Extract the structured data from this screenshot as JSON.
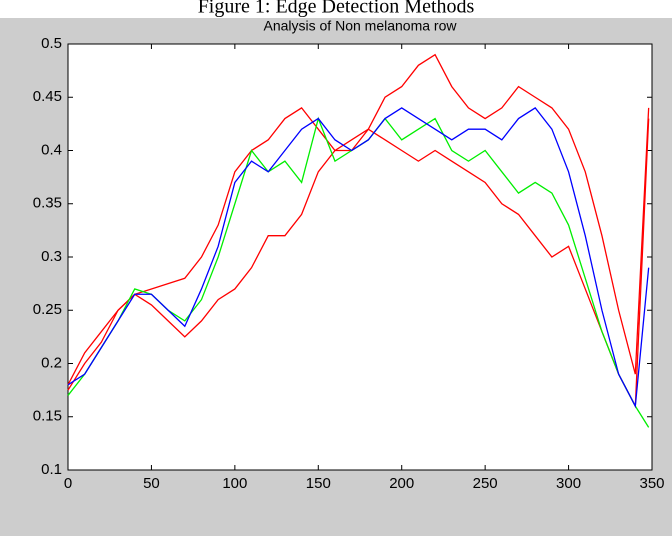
{
  "chart_data": {
    "type": "line",
    "caption": "Figure 1: Edge Detection Methods",
    "title": "Analysis of Non melanoma row",
    "x": [
      0,
      10,
      20,
      30,
      40,
      50,
      60,
      70,
      80,
      90,
      100,
      110,
      120,
      130,
      140,
      150,
      160,
      170,
      180,
      190,
      200,
      210,
      220,
      230,
      240,
      250,
      260,
      270,
      280,
      290,
      300,
      310,
      320,
      330,
      340,
      348
    ],
    "series": [
      {
        "color": "#ff0000",
        "values": [
          0.18,
          0.21,
          0.23,
          0.25,
          0.265,
          0.27,
          0.275,
          0.28,
          0.3,
          0.33,
          0.38,
          0.4,
          0.41,
          0.43,
          0.44,
          0.42,
          0.4,
          0.41,
          0.42,
          0.45,
          0.46,
          0.48,
          0.49,
          0.46,
          0.44,
          0.43,
          0.44,
          0.46,
          0.45,
          0.44,
          0.42,
          0.38,
          0.32,
          0.25,
          0.19,
          0.44
        ]
      },
      {
        "color": "#ff0000",
        "values": [
          0.175,
          0.2,
          0.22,
          0.25,
          0.265,
          0.255,
          0.24,
          0.225,
          0.24,
          0.26,
          0.27,
          0.29,
          0.32,
          0.32,
          0.34,
          0.38,
          0.4,
          0.4,
          0.42,
          0.41,
          0.4,
          0.39,
          0.4,
          0.39,
          0.38,
          0.37,
          0.35,
          0.34,
          0.32,
          0.3,
          0.31,
          0.27,
          0.23,
          0.19,
          0.16,
          0.43
        ]
      },
      {
        "color": "#00ee00",
        "values": [
          0.17,
          0.19,
          0.215,
          0.24,
          0.27,
          0.265,
          0.25,
          0.24,
          0.26,
          0.3,
          0.35,
          0.4,
          0.38,
          0.39,
          0.37,
          0.43,
          0.39,
          0.4,
          0.41,
          0.43,
          0.41,
          0.42,
          0.43,
          0.4,
          0.39,
          0.4,
          0.38,
          0.36,
          0.37,
          0.36,
          0.33,
          0.28,
          0.23,
          0.19,
          0.16,
          0.14
        ]
      },
      {
        "color": "#0000ff",
        "values": [
          0.18,
          0.19,
          0.215,
          0.24,
          0.265,
          0.265,
          0.25,
          0.235,
          0.27,
          0.31,
          0.37,
          0.39,
          0.38,
          0.4,
          0.42,
          0.43,
          0.41,
          0.4,
          0.41,
          0.43,
          0.44,
          0.43,
          0.42,
          0.41,
          0.42,
          0.42,
          0.41,
          0.43,
          0.44,
          0.42,
          0.38,
          0.32,
          0.25,
          0.19,
          0.16,
          0.29
        ]
      }
    ],
    "xlim": [
      0,
      350
    ],
    "xticks": [
      0,
      50,
      100,
      150,
      200,
      250,
      300,
      350
    ],
    "ylim": [
      0.1,
      0.5
    ],
    "yticks": [
      0.1,
      0.15,
      0.2,
      0.25,
      0.3,
      0.35,
      0.4,
      0.45,
      0.5
    ]
  }
}
